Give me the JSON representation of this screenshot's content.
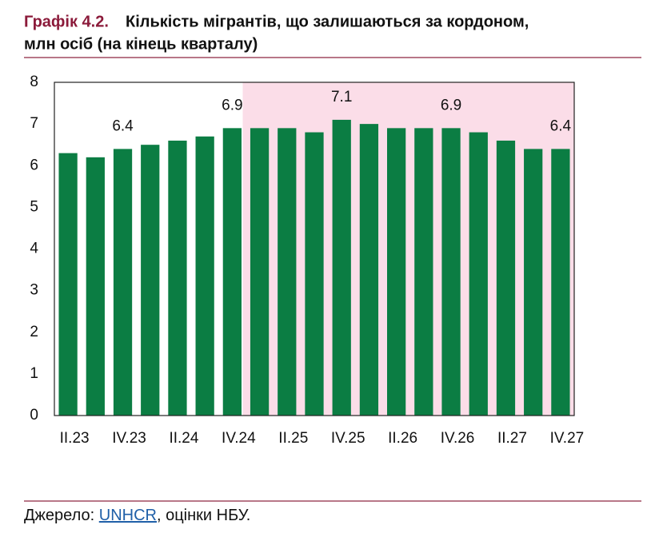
{
  "chart_data": {
    "type": "bar",
    "title_number": "Графік 4.2.",
    "title_lines": [
      "Кількість мігрантів, що залишаються за кордоном,",
      "млн осіб (на кінець кварталу)"
    ],
    "categories": [
      "II.23",
      null,
      "IV.23",
      null,
      "II.24",
      null,
      "IV.24",
      null,
      "II.25",
      null,
      "IV.25",
      null,
      "II.26",
      null,
      "IV.26",
      null,
      "II.27",
      null,
      "IV.27"
    ],
    "values": [
      6.3,
      6.2,
      6.4,
      6.5,
      6.6,
      6.7,
      6.9,
      6.9,
      6.9,
      6.8,
      7.1,
      7.0,
      6.9,
      6.9,
      6.9,
      6.8,
      6.6,
      6.4,
      6.4
    ],
    "value_labels": [
      null,
      null,
      "6.4",
      null,
      null,
      null,
      "6.9",
      null,
      null,
      null,
      "7.1",
      null,
      null,
      null,
      "6.9",
      null,
      null,
      null,
      "6.4"
    ],
    "color": "#0b7d43",
    "shade_color": "#fbdde8",
    "shaded_from": 7,
    "ylim": [
      0,
      8
    ],
    "yticks": [
      0,
      1,
      2,
      3,
      4,
      5,
      6,
      7,
      8
    ],
    "grid": false,
    "source": {
      "prefix": "Джерело: ",
      "link": "UNHCR",
      "suffix": ", оцінки НБУ."
    }
  }
}
